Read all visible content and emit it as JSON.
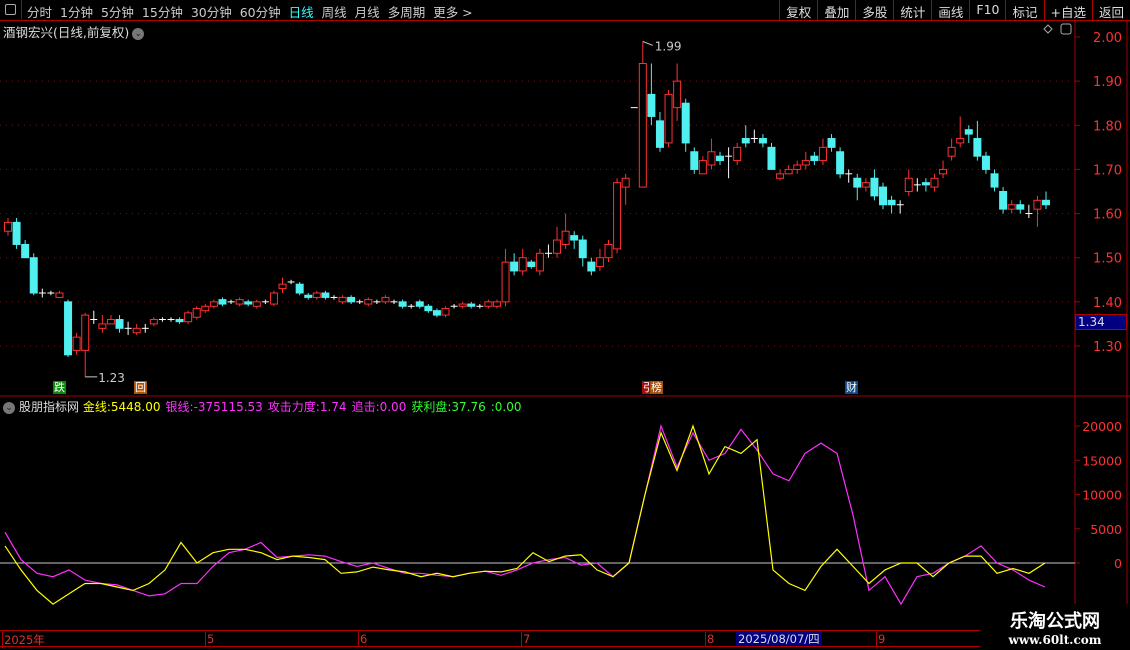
{
  "toolbar": {
    "periods": [
      "分时",
      "1分钟",
      "5分钟",
      "15分钟",
      "30分钟",
      "60分钟",
      "日线",
      "周线",
      "月线",
      "多周期",
      "更多 >"
    ],
    "active_period": "日线",
    "right_buttons": [
      "复权",
      "叠加",
      "多股",
      "统计",
      "画线",
      "F10",
      "标记",
      "+自选",
      "返回"
    ]
  },
  "main_chart": {
    "title": "酒钢宏兴(日线,前复权)",
    "price_axis": [
      "2.00",
      "1.90",
      "1.80",
      "1.70",
      "1.60",
      "1.50",
      "1.40",
      "1.30"
    ],
    "current_price": "1.34",
    "high_label": "1.99",
    "low_label": "1.23",
    "markers": [
      {
        "text": "跌",
        "color": "#0a8a0a"
      },
      {
        "text": "回",
        "color": "#b05000"
      },
      {
        "text": "引",
        "color": "#a01010"
      },
      {
        "text": "榜",
        "color": "#a05010"
      },
      {
        "text": "财",
        "color": "#104a8a"
      }
    ],
    "colors": {
      "up": "#ff3030",
      "down": "#50f0f0",
      "doji": "#ffffff",
      "grid": "#a00000"
    }
  },
  "candles": [
    [
      1.56,
      1.58,
      1.59,
      1.55
    ],
    [
      1.58,
      1.53,
      1.59,
      1.52
    ],
    [
      1.53,
      1.5,
      1.54,
      1.5
    ],
    [
      1.5,
      1.42,
      1.51,
      1.415
    ],
    [
      1.42,
      1.42,
      1.43,
      1.41
    ],
    [
      1.42,
      1.42,
      1.425,
      1.415
    ],
    [
      1.41,
      1.42,
      1.425,
      1.41
    ],
    [
      1.4,
      1.28
    ],
    [
      1.29,
      1.32,
      1.33,
      1.28
    ],
    [
      1.29,
      1.37,
      1.375,
      1.23
    ],
    [
      1.36,
      1.36,
      1.38,
      1.35
    ],
    [
      1.34,
      1.35,
      1.37,
      1.33
    ],
    [
      1.35,
      1.36,
      1.37,
      1.35
    ],
    [
      1.36,
      1.34,
      1.37,
      1.33
    ],
    [
      1.34,
      1.34,
      1.355,
      1.325
    ],
    [
      1.33,
      1.34,
      1.35,
      1.325
    ],
    [
      1.34,
      1.34,
      1.35,
      1.33
    ],
    [
      1.35,
      1.36
    ],
    [
      1.36,
      1.36
    ],
    [
      1.36,
      1.36
    ],
    [
      1.36,
      1.355
    ],
    [
      1.355,
      1.375
    ],
    [
      1.365,
      1.385
    ],
    [
      1.38,
      1.39
    ],
    [
      1.39,
      1.4
    ],
    [
      1.405,
      1.395
    ],
    [
      1.4,
      1.4
    ],
    [
      1.395,
      1.405
    ],
    [
      1.4,
      1.395
    ],
    [
      1.39,
      1.4
    ],
    [
      1.4,
      1.4
    ],
    [
      1.395,
      1.42
    ],
    [
      1.43,
      1.44,
      1.455,
      1.42
    ],
    [
      1.445,
      1.445
    ],
    [
      1.44,
      1.42
    ],
    [
      1.415,
      1.41
    ],
    [
      1.41,
      1.42
    ],
    [
      1.42,
      1.41
    ],
    [
      1.41,
      1.41
    ],
    [
      1.4,
      1.41
    ],
    [
      1.41,
      1.4
    ],
    [
      1.4,
      1.4
    ],
    [
      1.395,
      1.405
    ],
    [
      1.4,
      1.4
    ],
    [
      1.4,
      1.41
    ],
    [
      1.4,
      1.4
    ],
    [
      1.4,
      1.39
    ],
    [
      1.39,
      1.39
    ],
    [
      1.4,
      1.39
    ],
    [
      1.39,
      1.38
    ],
    [
      1.38,
      1.37
    ],
    [
      1.37,
      1.385
    ],
    [
      1.39,
      1.39
    ],
    [
      1.39,
      1.395
    ],
    [
      1.395,
      1.39
    ],
    [
      1.39,
      1.39
    ],
    [
      1.39,
      1.4
    ],
    [
      1.39,
      1.4
    ],
    [
      1.4,
      1.49,
      1.52,
      1.39
    ],
    [
      1.49,
      1.47,
      1.51,
      1.46
    ],
    [
      1.47,
      1.5,
      1.52,
      1.46
    ],
    [
      1.49,
      1.48
    ],
    [
      1.47,
      1.51,
      1.52,
      1.46
    ],
    [
      1.51,
      1.51,
      1.53,
      1.5
    ],
    [
      1.51,
      1.54,
      1.57,
      1.5
    ],
    [
      1.53,
      1.56,
      1.6,
      1.52
    ],
    [
      1.55,
      1.54,
      1.56,
      1.52
    ],
    [
      1.54,
      1.5,
      1.55,
      1.48
    ],
    [
      1.49,
      1.47,
      1.5,
      1.46
    ],
    [
      1.48,
      1.5,
      1.52,
      1.47
    ],
    [
      1.5,
      1.53,
      1.54,
      1.49
    ],
    [
      1.52,
      1.67,
      1.68,
      1.51
    ],
    [
      1.66,
      1.68,
      1.69,
      1.62
    ],
    [
      1.84,
      1.84,
      1.84,
      1.84
    ],
    [
      1.66,
      1.94,
      1.99,
      1.66
    ],
    [
      1.87,
      1.82,
      1.94,
      1.8
    ],
    [
      1.81,
      1.75,
      1.83,
      1.74
    ],
    [
      1.76,
      1.87,
      1.88,
      1.75
    ],
    [
      1.84,
      1.9,
      1.94,
      1.81
    ],
    [
      1.85,
      1.76,
      1.86,
      1.74
    ],
    [
      1.74,
      1.7,
      1.75,
      1.69
    ],
    [
      1.69,
      1.72,
      1.73,
      1.69
    ],
    [
      1.71,
      1.74,
      1.77,
      1.7
    ],
    [
      1.73,
      1.72,
      1.74,
      1.71
    ],
    [
      1.73,
      1.73,
      1.75,
      1.68
    ],
    [
      1.72,
      1.75,
      1.76,
      1.71
    ],
    [
      1.77,
      1.76,
      1.8,
      1.75
    ],
    [
      1.77,
      1.77,
      1.79,
      1.76
    ],
    [
      1.77,
      1.76,
      1.78,
      1.75
    ],
    [
      1.75,
      1.7,
      1.76,
      1.7
    ],
    [
      1.68,
      1.69,
      1.7,
      1.675
    ],
    [
      1.69,
      1.7,
      1.71,
      1.69
    ],
    [
      1.7,
      1.71,
      1.72,
      1.69
    ],
    [
      1.71,
      1.72,
      1.74,
      1.7
    ],
    [
      1.73,
      1.72,
      1.74,
      1.71
    ],
    [
      1.72,
      1.75,
      1.77,
      1.71
    ],
    [
      1.77,
      1.75,
      1.78,
      1.74
    ],
    [
      1.74,
      1.69,
      1.75,
      1.68
    ],
    [
      1.69,
      1.69,
      1.7,
      1.67
    ],
    [
      1.68,
      1.66,
      1.69,
      1.63
    ],
    [
      1.66,
      1.67,
      1.68,
      1.65
    ],
    [
      1.68,
      1.64,
      1.7,
      1.63
    ],
    [
      1.66,
      1.62,
      1.67,
      1.61
    ],
    [
      1.63,
      1.62,
      1.64,
      1.6
    ],
    [
      1.62,
      1.62,
      1.63,
      1.6
    ],
    [
      1.65,
      1.68,
      1.7,
      1.64
    ],
    [
      1.665,
      1.665,
      1.68,
      1.65
    ],
    [
      1.67,
      1.665,
      1.68,
      1.65
    ],
    [
      1.66,
      1.68,
      1.69,
      1.65
    ],
    [
      1.69,
      1.7,
      1.72,
      1.68
    ],
    [
      1.73,
      1.75,
      1.77,
      1.72
    ],
    [
      1.76,
      1.77,
      1.82,
      1.75
    ],
    [
      1.79,
      1.78,
      1.8,
      1.76
    ],
    [
      1.77,
      1.73,
      1.81,
      1.72
    ],
    [
      1.73,
      1.7,
      1.74,
      1.69
    ],
    [
      1.69,
      1.66,
      1.7,
      1.65
    ],
    [
      1.65,
      1.61,
      1.66,
      1.6
    ],
    [
      1.61,
      1.62,
      1.63,
      1.6
    ],
    [
      1.62,
      1.61,
      1.63,
      1.6
    ],
    [
      1.6,
      1.6,
      1.62,
      1.59
    ],
    [
      1.61,
      1.63,
      1.64,
      1.57
    ],
    [
      1.63,
      1.62,
      1.65,
      1.61
    ]
  ],
  "indicator": {
    "name": "股朋指标网",
    "items": [
      {
        "label": "金线:",
        "value": "5448.00",
        "color": "#ffff00"
      },
      {
        "label": "银线:",
        "value": "-375115.53",
        "color": "#ff30ff"
      },
      {
        "label": "攻击力度:",
        "value": "1.74",
        "color": "#ff30ff"
      },
      {
        "label": "追击:",
        "value": "0.00",
        "color": "#ff30ff"
      },
      {
        "label": "获利盘:",
        "value": "37.76",
        "color": "#30ff30"
      },
      {
        "label": ":",
        "value": "0.00",
        "color": "#30ff30"
      }
    ],
    "axis": [
      "20000",
      "15000",
      "10000",
      "5000",
      "0"
    ],
    "gold_line": [
      2500,
      -1000,
      -4000,
      -6000,
      -4500,
      -3000,
      -3000,
      -3500,
      -4000,
      -3000,
      -1000,
      3000,
      0,
      1500,
      2000,
      2000,
      1500,
      500,
      1000,
      800,
      500,
      -1500,
      -1300,
      -600,
      -1000,
      -1300,
      -2000,
      -1500,
      -2000,
      -1500,
      -1200,
      -1300,
      -800,
      1500,
      200,
      1000,
      1200,
      -1000,
      -2000,
      0,
      10000,
      19000,
      13500,
      20000,
      13000,
      17000,
      16000,
      18000,
      -1000,
      -3000,
      -4000,
      -500,
      2000,
      -500,
      -3000,
      -1000,
      0,
      0,
      -2000,
      0,
      1000,
      1000,
      -1500,
      -800,
      -1500,
      0
    ],
    "silver_line": [
      4500,
      500,
      -1500,
      -2000,
      -1000,
      -2500,
      -3000,
      -3200,
      -4000,
      -4800,
      -4500,
      -3000,
      -3000,
      -500,
      1500,
      2000,
      3000,
      800,
      1000,
      1200,
      1000,
      200,
      -500,
      0,
      -800,
      -1500,
      -1500,
      -1800,
      -2000,
      -1500,
      -1200,
      -1800,
      -1000,
      0,
      500,
      800,
      -300,
      0,
      -2000,
      0,
      10000,
      20000,
      14000,
      19000,
      15000,
      16000,
      19500,
      16500,
      13000,
      12000,
      16000,
      17500,
      16000,
      7000,
      -4000,
      -2000,
      -6000,
      -2000,
      -1500,
      0,
      1000,
      2500,
      0,
      -1000,
      -2500,
      -3500
    ],
    "colors": {
      "gold": "#ffff00",
      "silver": "#ff30ff",
      "zero": "#c8c8c8"
    }
  },
  "date_axis": {
    "labels": [
      "2025年",
      "5",
      "6",
      "7",
      "8",
      "9"
    ],
    "selected_date": "2025/08/07/四"
  },
  "watermark": {
    "line1": "乐淘公式网",
    "line2": "www.60lt.com"
  }
}
